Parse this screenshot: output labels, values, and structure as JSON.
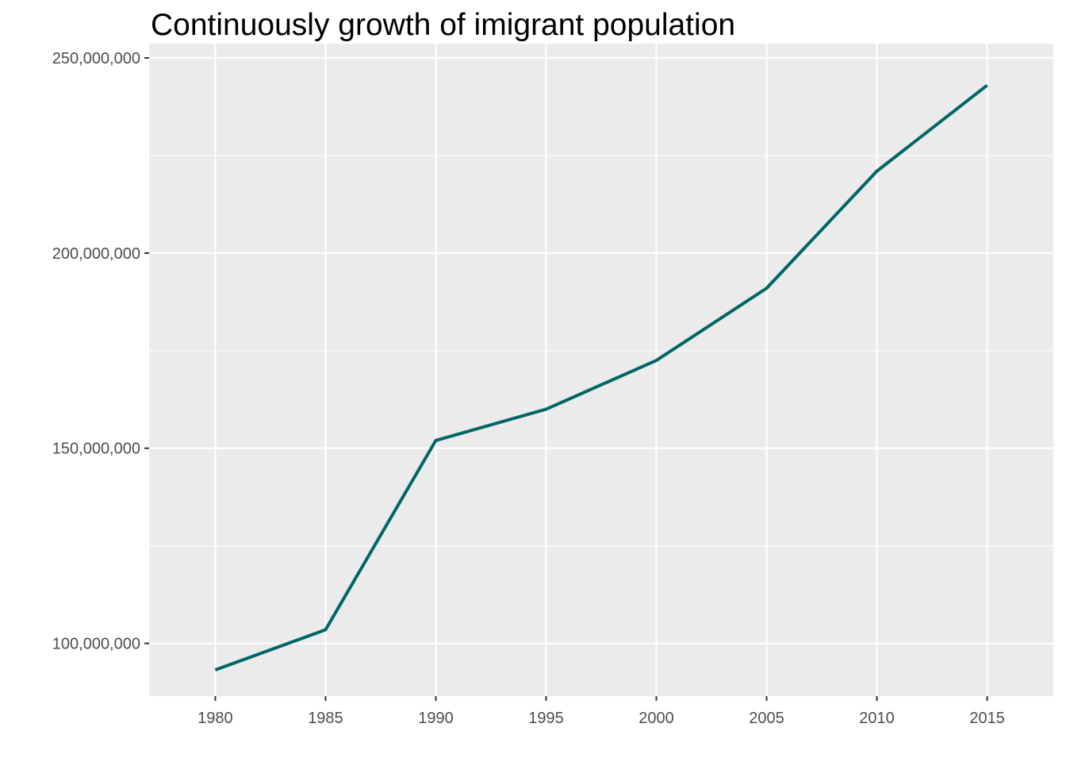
{
  "chart_data": {
    "type": "line",
    "title": "Continuously growth of imigrant population",
    "xlabel": "",
    "ylabel": "",
    "x": [
      1980,
      1985,
      1990,
      1995,
      2000,
      2005,
      2010,
      2015
    ],
    "series": [
      {
        "values": [
          93200000,
          103500000,
          152000000,
          160000000,
          172500000,
          191000000,
          221000000,
          243000000
        ],
        "color": "#006666"
      }
    ],
    "xlim": [
      1977,
      2018
    ],
    "ylim": [
      86500000,
      250000000
    ],
    "x_ticks": [
      1980,
      1985,
      1990,
      1995,
      2000,
      2005,
      2010,
      2015
    ],
    "x_tick_labels": [
      "1980",
      "1985",
      "1990",
      "1995",
      "2000",
      "2005",
      "2010",
      "2015"
    ],
    "y_ticks": [
      100000000,
      150000000,
      200000000,
      250000000
    ],
    "y_tick_labels": [
      "100,000,000",
      "150,000,000",
      "200,000,000",
      "250,000,000"
    ],
    "y_minor_ticks": [
      125000000,
      175000000,
      225000000
    ],
    "grid": true,
    "legend": "none",
    "panel_color": "#ebebeb",
    "grid_color": "#ffffff",
    "tick_color": "#333333"
  }
}
